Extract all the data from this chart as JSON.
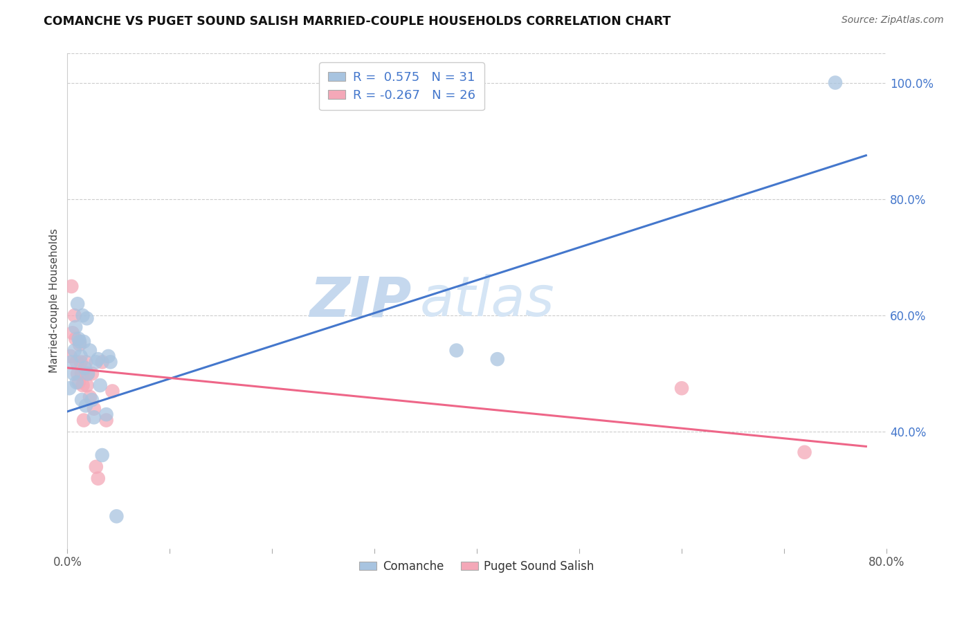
{
  "title": "COMANCHE VS PUGET SOUND SALISH MARRIED-COUPLE HOUSEHOLDS CORRELATION CHART",
  "source": "Source: ZipAtlas.com",
  "ylabel": "Married-couple Households",
  "xlim": [
    0.0,
    0.8
  ],
  "ylim": [
    0.2,
    1.05
  ],
  "xticks": [
    0.0,
    0.1,
    0.2,
    0.3,
    0.4,
    0.5,
    0.6,
    0.7,
    0.8
  ],
  "xticklabels": [
    "0.0%",
    "",
    "",
    "",
    "",
    "",
    "",
    "",
    "80.0%"
  ],
  "ytick_positions": [
    0.4,
    0.6,
    0.8,
    1.0
  ],
  "ytick_labels": [
    "40.0%",
    "60.0%",
    "80.0%",
    "100.0%"
  ],
  "blue_color": "#a8c4e0",
  "pink_color": "#f4a8b8",
  "blue_line_color": "#4477cc",
  "pink_line_color": "#ee6688",
  "watermark_zip": "ZIP",
  "watermark_atlas": "atlas",
  "comanche_x": [
    0.002,
    0.004,
    0.006,
    0.007,
    0.008,
    0.009,
    0.01,
    0.011,
    0.012,
    0.013,
    0.014,
    0.015,
    0.016,
    0.017,
    0.018,
    0.019,
    0.02,
    0.022,
    0.024,
    0.026,
    0.028,
    0.03,
    0.032,
    0.034,
    0.038,
    0.04,
    0.042,
    0.048,
    0.38,
    0.42,
    0.75
  ],
  "comanche_y": [
    0.475,
    0.52,
    0.5,
    0.54,
    0.58,
    0.485,
    0.62,
    0.56,
    0.555,
    0.53,
    0.455,
    0.6,
    0.555,
    0.51,
    0.445,
    0.595,
    0.5,
    0.54,
    0.455,
    0.425,
    0.52,
    0.525,
    0.48,
    0.36,
    0.43,
    0.53,
    0.52,
    0.255,
    0.54,
    0.525,
    1.0
  ],
  "puget_x": [
    0.003,
    0.004,
    0.005,
    0.007,
    0.008,
    0.009,
    0.01,
    0.011,
    0.012,
    0.013,
    0.014,
    0.015,
    0.016,
    0.018,
    0.019,
    0.02,
    0.022,
    0.024,
    0.026,
    0.028,
    0.03,
    0.034,
    0.038,
    0.044,
    0.6,
    0.72
  ],
  "puget_y": [
    0.53,
    0.65,
    0.57,
    0.6,
    0.56,
    0.52,
    0.5,
    0.485,
    0.55,
    0.52,
    0.5,
    0.48,
    0.42,
    0.52,
    0.48,
    0.5,
    0.46,
    0.5,
    0.44,
    0.34,
    0.32,
    0.52,
    0.42,
    0.47,
    0.475,
    0.365
  ],
  "blue_trend_x": [
    0.0,
    0.78
  ],
  "blue_trend_y": [
    0.435,
    0.875
  ],
  "pink_trend_x": [
    0.0,
    0.78
  ],
  "pink_trend_y": [
    0.51,
    0.375
  ]
}
